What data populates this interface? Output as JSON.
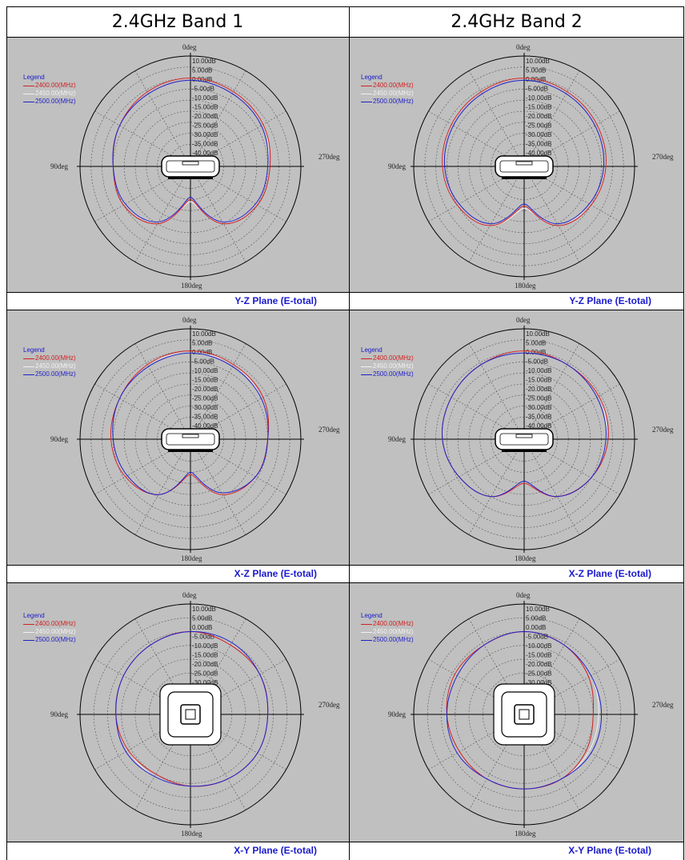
{
  "headers": [
    "2.4GHz Band 1",
    "2.4GHz Band 2"
  ],
  "legend": {
    "title": "Legend",
    "entries": [
      {
        "label": "2400.00(MHz)",
        "color": "#d22020"
      },
      {
        "label": "2450.00(MHz)",
        "color": "#f2f2f2"
      },
      {
        "label": "2500.00(MHz)",
        "color": "#2020c8"
      }
    ]
  },
  "angle_labels": {
    "top": "0deg",
    "left": "90deg",
    "right": "270deg",
    "bottom": "180deg"
  },
  "ring_labels": [
    "10.00dB",
    "5.00dB",
    "0.00dB",
    "-5.00dB",
    "-10.00dB",
    "-15.00dB",
    "-20.00dB",
    "-25.00dB",
    "-30.00dB",
    "-35.00dB",
    "-40.00dB"
  ],
  "captions": {
    "yz": "Y-Z Plane (E-total)",
    "xz": "X-Z Plane (E-total)",
    "xy": "X-Y Plane (E-total)"
  },
  "chart_data": [
    {
      "type": "polar",
      "title": "2.4GHz Band 1",
      "plane": "Y-Z Plane (E-total)",
      "r_range_db": [
        -40,
        10
      ],
      "ring_step_db": 5,
      "angles_deg": [
        0,
        30,
        60,
        90,
        120,
        150,
        180,
        210,
        240,
        270,
        300,
        330
      ],
      "series": [
        {
          "name": "2400.00(MHz)",
          "values_db": [
            0,
            -1,
            -3,
            -5,
            -5,
            -10,
            -25,
            -10,
            -5,
            -4,
            -2,
            -1
          ]
        },
        {
          "name": "2450.00(MHz)",
          "values_db": [
            0,
            -1,
            -3,
            -5,
            -6,
            -11,
            -24,
            -11,
            -6,
            -5,
            -2,
            -1
          ]
        },
        {
          "name": "2500.00(MHz)",
          "values_db": [
            -1,
            -2,
            -3,
            -5,
            -6,
            -11,
            -26,
            -11,
            -6,
            -5,
            -3,
            -2
          ]
        }
      ]
    },
    {
      "type": "polar",
      "title": "2.4GHz Band 2",
      "plane": "Y-Z Plane (E-total)",
      "r_range_db": [
        -40,
        10
      ],
      "ring_step_db": 5,
      "angles_deg": [
        0,
        30,
        60,
        90,
        120,
        150,
        180,
        210,
        240,
        270,
        300,
        330
      ],
      "series": [
        {
          "name": "2400.00(MHz)",
          "values_db": [
            0,
            -1,
            -2,
            -3,
            -5,
            -9,
            -22,
            -9,
            -5,
            -3,
            -2,
            -1
          ]
        },
        {
          "name": "2450.00(MHz)",
          "values_db": [
            0,
            -1,
            -2,
            -3,
            -5,
            -9,
            -21,
            -10,
            -5,
            -3,
            -2,
            -1
          ]
        },
        {
          "name": "2500.00(MHz)",
          "values_db": [
            -1,
            -2,
            -3,
            -4,
            -6,
            -10,
            -23,
            -10,
            -6,
            -4,
            -3,
            -2
          ]
        }
      ]
    },
    {
      "type": "polar",
      "title": "2.4GHz Band 1",
      "plane": "X-Z Plane (E-total)",
      "r_range_db": [
        -40,
        10
      ],
      "ring_step_db": 5,
      "angles_deg": [
        0,
        30,
        60,
        90,
        120,
        150,
        180,
        210,
        240,
        270,
        300,
        330
      ],
      "series": [
        {
          "name": "2400.00(MHz)",
          "values_db": [
            0,
            -1,
            -3,
            -4,
            -6,
            -11,
            -24,
            -11,
            -6,
            -5,
            -2,
            -1
          ]
        },
        {
          "name": "2450.00(MHz)",
          "values_db": [
            -1,
            -1,
            -3,
            -4,
            -6,
            -11,
            -24,
            -11,
            -6,
            -5,
            -3,
            -1
          ]
        },
        {
          "name": "2500.00(MHz)",
          "values_db": [
            -1,
            -2,
            -3,
            -5,
            -7,
            -11,
            -25,
            -12,
            -6,
            -5,
            -3,
            -2
          ]
        }
      ]
    },
    {
      "type": "polar",
      "title": "2.4GHz Band 2",
      "plane": "X-Z Plane (E-total)",
      "r_range_db": [
        -40,
        10
      ],
      "ring_step_db": 5,
      "angles_deg": [
        0,
        30,
        60,
        90,
        120,
        150,
        180,
        210,
        240,
        270,
        300,
        330
      ],
      "series": [
        {
          "name": "2400.00(MHz)",
          "values_db": [
            0,
            -1,
            -2,
            -3,
            -6,
            -10,
            -20,
            -10,
            -5,
            -2,
            -1,
            -1
          ]
        },
        {
          "name": "2450.00(MHz)",
          "values_db": [
            0,
            -1,
            -2,
            -3,
            -6,
            -10,
            -20,
            -10,
            -5,
            -3,
            -1,
            -1
          ]
        },
        {
          "name": "2500.00(MHz)",
          "values_db": [
            -1,
            -1,
            -2,
            -3,
            -6,
            -10,
            -21,
            -10,
            -5,
            -3,
            -2,
            -1
          ]
        }
      ]
    },
    {
      "type": "polar",
      "title": "2.4GHz Band 1",
      "plane": "X-Y Plane (E-total)",
      "r_range_db": [
        -30,
        10
      ],
      "ring_step_db": 5,
      "angles_deg": [
        0,
        30,
        60,
        90,
        120,
        150,
        180,
        210,
        240,
        270,
        300,
        330
      ],
      "series": [
        {
          "name": "2400.00(MHz)",
          "values_db": [
            0,
            -1,
            -2,
            -3,
            -4,
            -5,
            -4,
            -3,
            -2,
            -2,
            -1,
            -1
          ]
        },
        {
          "name": "2450.00(MHz)",
          "values_db": [
            0,
            -1,
            -2,
            -3,
            -4,
            -4,
            -4,
            -3,
            -2,
            -2,
            -1,
            0
          ]
        },
        {
          "name": "2500.00(MHz)",
          "values_db": [
            0,
            -1,
            -2,
            -3,
            -3,
            -4,
            -4,
            -3,
            -2,
            -2,
            -1,
            0
          ]
        }
      ]
    },
    {
      "type": "polar",
      "title": "2.4GHz Band 2",
      "plane": "X-Y Plane (E-total)",
      "r_range_db": [
        -30,
        10
      ],
      "ring_step_db": 5,
      "angles_deg": [
        0,
        30,
        60,
        90,
        120,
        150,
        180,
        210,
        240,
        270,
        300,
        330
      ],
      "series": [
        {
          "name": "2400.00(MHz)",
          "values_db": [
            0,
            -1,
            -1,
            -2,
            -3,
            -3,
            -3,
            -3,
            -4,
            -5,
            -3,
            -1
          ]
        },
        {
          "name": "2450.00(MHz)",
          "values_db": [
            0,
            -1,
            -1,
            -2,
            -2,
            -3,
            -3,
            -3,
            -3,
            -3,
            -2,
            -1
          ]
        },
        {
          "name": "2500.00(MHz)",
          "values_db": [
            0,
            -1,
            -2,
            -2,
            -2,
            -3,
            -3,
            -3,
            -2,
            -2,
            -2,
            -1
          ]
        }
      ]
    }
  ]
}
